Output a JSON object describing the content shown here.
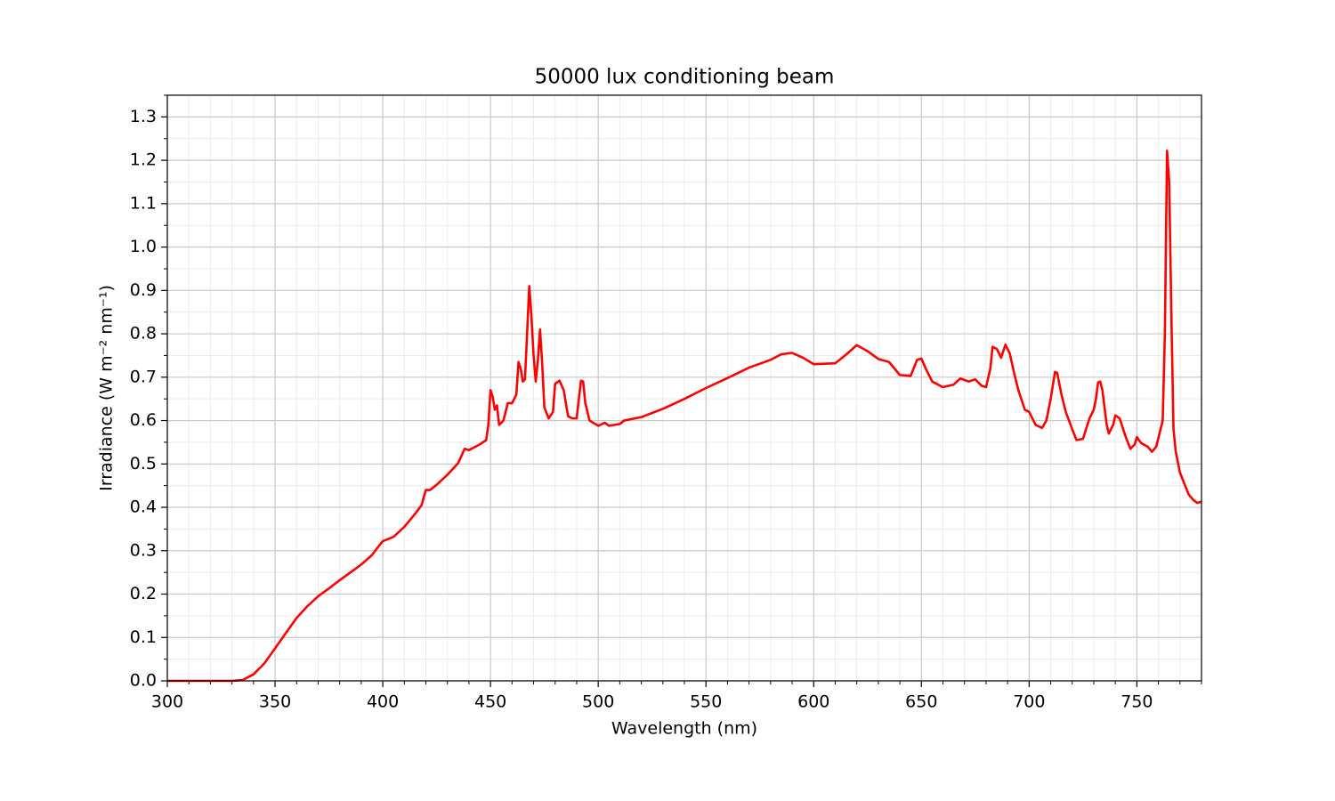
{
  "chart_data": {
    "type": "line",
    "title": "50000 lux conditioning beam",
    "xlabel": "Wavelength (nm)",
    "ylabel": "Irradiance (W m⁻² nm⁻¹)",
    "color": "#ff0000",
    "grid": true,
    "xlim": [
      300,
      780
    ],
    "ylim": [
      0,
      1.35
    ],
    "xticks": [
      300,
      350,
      400,
      450,
      500,
      550,
      600,
      650,
      700,
      750
    ],
    "yticks": [
      {
        "value": 0,
        "label": "0.0"
      },
      0.1,
      0.2,
      0.3,
      0.4,
      0.5,
      0.6,
      0.7,
      0.8,
      0.9,
      {
        "value": 1,
        "label": "1.0"
      },
      1.1,
      1.2,
      1.3
    ],
    "xminorticks": [
      310,
      320,
      330,
      340,
      360,
      370,
      380,
      390,
      410,
      420,
      430,
      440,
      460,
      470,
      480,
      490,
      510,
      520,
      530,
      540,
      560,
      570,
      580,
      590,
      610,
      620,
      630,
      640,
      660,
      670,
      680,
      690,
      710,
      720,
      730,
      740,
      760,
      770,
      780
    ],
    "yminorticks": [
      0.05,
      0.15,
      0.25,
      0.35,
      0.45,
      0.55,
      0.65,
      0.75,
      0.85,
      0.95,
      1.05,
      1.15,
      1.25,
      1.35
    ],
    "x": [
      300,
      310,
      320,
      330,
      335,
      340,
      345,
      350,
      355,
      360,
      365,
      370,
      375,
      380,
      385,
      390,
      395,
      398,
      400,
      405,
      410,
      415,
      418,
      420,
      422,
      425,
      430,
      435,
      438,
      440,
      445,
      448,
      449,
      450,
      451,
      452,
      453,
      454,
      456,
      458,
      460,
      462,
      463,
      464,
      465,
      466,
      468,
      469,
      470,
      471,
      472,
      473,
      474,
      475,
      477,
      479,
      480,
      482,
      484,
      486,
      488,
      490,
      491,
      492,
      493,
      494,
      496,
      500,
      503,
      505,
      510,
      512,
      520,
      530,
      540,
      550,
      560,
      570,
      580,
      585,
      590,
      595,
      600,
      610,
      615,
      620,
      625,
      630,
      635,
      640,
      645,
      648,
      650,
      652,
      655,
      660,
      665,
      668,
      672,
      675,
      678,
      680,
      682,
      683,
      685,
      687,
      689,
      691,
      693,
      695,
      698,
      700,
      703,
      706,
      708,
      710,
      712,
      713,
      715,
      717,
      720,
      722,
      725,
      728,
      730,
      731,
      732,
      733,
      734,
      736,
      737,
      739,
      740,
      742,
      745,
      747,
      749,
      750,
      752,
      755,
      757,
      759,
      760,
      762,
      763,
      764,
      765,
      766,
      767,
      768,
      770,
      772,
      774,
      776,
      778,
      780
    ],
    "values": [
      0,
      0,
      0,
      0,
      0.002,
      0.015,
      0.04,
      0.075,
      0.11,
      0.145,
      0.172,
      0.195,
      0.213,
      0.232,
      0.25,
      0.268,
      0.29,
      0.31,
      0.322,
      0.332,
      0.355,
      0.385,
      0.405,
      0.44,
      0.44,
      0.452,
      0.475,
      0.502,
      0.535,
      0.532,
      0.545,
      0.555,
      0.59,
      0.67,
      0.655,
      0.625,
      0.635,
      0.59,
      0.6,
      0.64,
      0.64,
      0.66,
      0.735,
      0.72,
      0.69,
      0.695,
      0.91,
      0.84,
      0.75,
      0.69,
      0.74,
      0.81,
      0.73,
      0.63,
      0.605,
      0.62,
      0.685,
      0.692,
      0.67,
      0.61,
      0.605,
      0.605,
      0.65,
      0.692,
      0.69,
      0.64,
      0.6,
      0.588,
      0.595,
      0.588,
      0.592,
      0.6,
      0.608,
      0.627,
      0.65,
      0.675,
      0.698,
      0.722,
      0.74,
      0.753,
      0.756,
      0.745,
      0.73,
      0.732,
      0.752,
      0.774,
      0.76,
      0.742,
      0.735,
      0.705,
      0.703,
      0.74,
      0.743,
      0.72,
      0.69,
      0.677,
      0.683,
      0.697,
      0.69,
      0.695,
      0.68,
      0.677,
      0.72,
      0.77,
      0.765,
      0.745,
      0.775,
      0.755,
      0.71,
      0.67,
      0.625,
      0.62,
      0.59,
      0.583,
      0.6,
      0.65,
      0.712,
      0.71,
      0.66,
      0.62,
      0.58,
      0.555,
      0.558,
      0.605,
      0.625,
      0.65,
      0.688,
      0.69,
      0.67,
      0.59,
      0.57,
      0.59,
      0.612,
      0.605,
      0.56,
      0.535,
      0.545,
      0.562,
      0.548,
      0.54,
      0.528,
      0.54,
      0.56,
      0.6,
      0.8,
      1.222,
      1.15,
      0.85,
      0.58,
      0.53,
      0.48,
      0.455,
      0.43,
      0.418,
      0.41,
      0.413
    ]
  }
}
